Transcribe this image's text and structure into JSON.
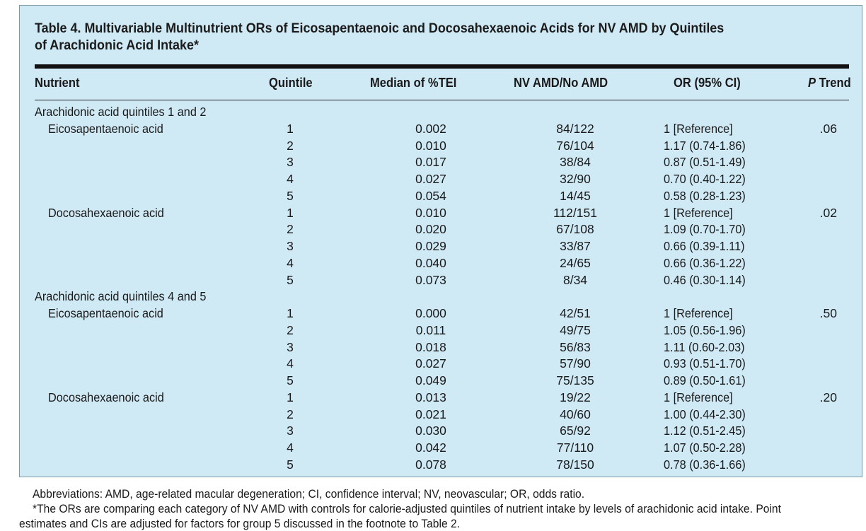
{
  "table": {
    "title_line1": "Table 4. Multivariable Multinutrient ORs of Eicosapentaenoic and Docosahexaenoic Acids for NV AMD by Quintiles",
    "title_line2": "of Arachidonic Acid Intake*",
    "headers": {
      "nutrient": "Nutrient",
      "quintile": "Quintile",
      "median": "Median of %TEI",
      "counts": "NV AMD/No AMD",
      "or": "OR (95% CI)",
      "p_trend_italic": "P",
      "p_trend_rest": " Trend"
    },
    "rows": [
      {
        "name": "Arachidonic acid quintiles 1 and 2",
        "indent": false,
        "q": "",
        "median": "",
        "counts": "",
        "or": "",
        "p": ""
      },
      {
        "name": "Eicosapentaenoic acid",
        "indent": true,
        "q": "1",
        "median": "0.002",
        "counts": "84/122",
        "or": "1 [Reference]",
        "p": ".06"
      },
      {
        "name": "",
        "indent": true,
        "q": "2",
        "median": "0.010",
        "counts": "76/104",
        "or": "1.17 (0.74-1.86)",
        "p": ""
      },
      {
        "name": "",
        "indent": true,
        "q": "3",
        "median": "0.017",
        "counts": "38/84",
        "or": "0.87 (0.51-1.49)",
        "p": ""
      },
      {
        "name": "",
        "indent": true,
        "q": "4",
        "median": "0.027",
        "counts": "32/90",
        "or": "0.70 (0.40-1.22)",
        "p": ""
      },
      {
        "name": "",
        "indent": true,
        "q": "5",
        "median": "0.054",
        "counts": "14/45",
        "or": "0.58 (0.28-1.23)",
        "p": ""
      },
      {
        "name": "Docosahexaenoic acid",
        "indent": true,
        "q": "1",
        "median": "0.010",
        "counts": "112/151",
        "or": "1 [Reference]",
        "p": ".02"
      },
      {
        "name": "",
        "indent": true,
        "q": "2",
        "median": "0.020",
        "counts": "67/108",
        "or": "1.09 (0.70-1.70)",
        "p": ""
      },
      {
        "name": "",
        "indent": true,
        "q": "3",
        "median": "0.029",
        "counts": "33/87",
        "or": "0.66 (0.39-1.11)",
        "p": ""
      },
      {
        "name": "",
        "indent": true,
        "q": "4",
        "median": "0.040",
        "counts": "24/65",
        "or": "0.66 (0.36-1.22)",
        "p": ""
      },
      {
        "name": "",
        "indent": true,
        "q": "5",
        "median": "0.073",
        "counts": "8/34",
        "or": "0.46 (0.30-1.14)",
        "p": ""
      },
      {
        "name": "Arachidonic acid quintiles 4 and 5",
        "indent": false,
        "q": "",
        "median": "",
        "counts": "",
        "or": "",
        "p": ""
      },
      {
        "name": "Eicosapentaenoic acid",
        "indent": true,
        "q": "1",
        "median": "0.000",
        "counts": "42/51",
        "or": "1 [Reference]",
        "p": ".50"
      },
      {
        "name": "",
        "indent": true,
        "q": "2",
        "median": "0.011",
        "counts": "49/75",
        "or": "1.05 (0.56-1.96)",
        "p": ""
      },
      {
        "name": "",
        "indent": true,
        "q": "3",
        "median": "0.018",
        "counts": "56/83",
        "or": "1.11 (0.60-2.03)",
        "p": ""
      },
      {
        "name": "",
        "indent": true,
        "q": "4",
        "median": "0.027",
        "counts": "57/90",
        "or": "0.93 (0.51-1.70)",
        "p": ""
      },
      {
        "name": "",
        "indent": true,
        "q": "5",
        "median": "0.049",
        "counts": "75/135",
        "or": "0.89 (0.50-1.61)",
        "p": ""
      },
      {
        "name": "Docosahexaenoic acid",
        "indent": true,
        "q": "1",
        "median": "0.013",
        "counts": "19/22",
        "or": "1 [Reference]",
        "p": ".20"
      },
      {
        "name": "",
        "indent": true,
        "q": "2",
        "median": "0.021",
        "counts": "40/60",
        "or": "1.00 (0.44-2.30)",
        "p": ""
      },
      {
        "name": "",
        "indent": true,
        "q": "3",
        "median": "0.030",
        "counts": "65/92",
        "or": "1.12 (0.51-2.45)",
        "p": ""
      },
      {
        "name": "",
        "indent": true,
        "q": "4",
        "median": "0.042",
        "counts": "77/110",
        "or": "1.07 (0.50-2.28)",
        "p": ""
      },
      {
        "name": "",
        "indent": true,
        "q": "5",
        "median": "0.078",
        "counts": "78/150",
        "or": "0.78 (0.36-1.66)",
        "p": ""
      }
    ]
  },
  "footnotes": {
    "abbreviations": "Abbreviations: AMD, age-related macular degeneration; CI, confidence interval; NV, neovascular; OR, odds ratio.",
    "note_line1": "*The ORs are comparing each category of NV AMD with controls for calorie-adjusted quintiles of nutrient intake by levels of arachidonic acid intake. Point",
    "note_line2": "estimates and CIs are adjusted for factors for group 5 discussed in the footnote to Table 2."
  },
  "colors": {
    "panel_background": "#cfe9f5"
  }
}
